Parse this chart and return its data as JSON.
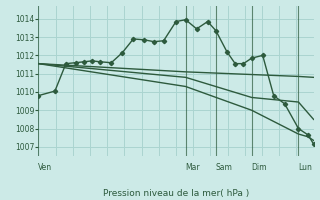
{
  "background_color": "#cceae7",
  "grid_color_major": "#aad4d0",
  "grid_color_minor": "#c0e4e0",
  "line_color": "#2d5a3d",
  "ylim": [
    1006.5,
    1014.7
  ],
  "yticks": [
    1007,
    1008,
    1009,
    1010,
    1011,
    1012,
    1013,
    1014
  ],
  "xlabel": "Pression niveau de la mer( hPa )",
  "day_labels": [
    "Ven",
    "Mar",
    "Sam",
    "Dim",
    "Lun"
  ],
  "day_positions": [
    0.0,
    0.535,
    0.645,
    0.775,
    0.945
  ],
  "series1": {
    "x": [
      0.0,
      0.06,
      0.1,
      0.135,
      0.165,
      0.195,
      0.225,
      0.265,
      0.305,
      0.345,
      0.385,
      0.42,
      0.455,
      0.5,
      0.535,
      0.575,
      0.615,
      0.645,
      0.685,
      0.715,
      0.745,
      0.775,
      0.815,
      0.855,
      0.895,
      0.945,
      0.98,
      1.0
    ],
    "y": [
      1009.8,
      1010.05,
      1011.55,
      1011.6,
      1011.65,
      1011.7,
      1011.65,
      1011.6,
      1012.15,
      1012.9,
      1012.85,
      1012.75,
      1012.8,
      1013.85,
      1013.95,
      1013.45,
      1013.85,
      1013.35,
      1012.2,
      1011.55,
      1011.55,
      1011.85,
      1012.0,
      1009.8,
      1009.35,
      1008.0,
      1007.65,
      1007.15
    ]
  },
  "series2": {
    "x": [
      0.0,
      0.535,
      0.945,
      1.0
    ],
    "y": [
      1011.55,
      1011.1,
      1010.85,
      1010.8
    ]
  },
  "series3": {
    "x": [
      0.0,
      0.535,
      0.775,
      0.945,
      1.0
    ],
    "y": [
      1011.55,
      1010.8,
      1009.7,
      1009.45,
      1008.5
    ]
  },
  "series4": {
    "x": [
      0.0,
      0.535,
      0.775,
      0.945,
      0.98,
      1.0
    ],
    "y": [
      1011.55,
      1010.3,
      1009.0,
      1007.7,
      1007.55,
      1007.35
    ]
  }
}
